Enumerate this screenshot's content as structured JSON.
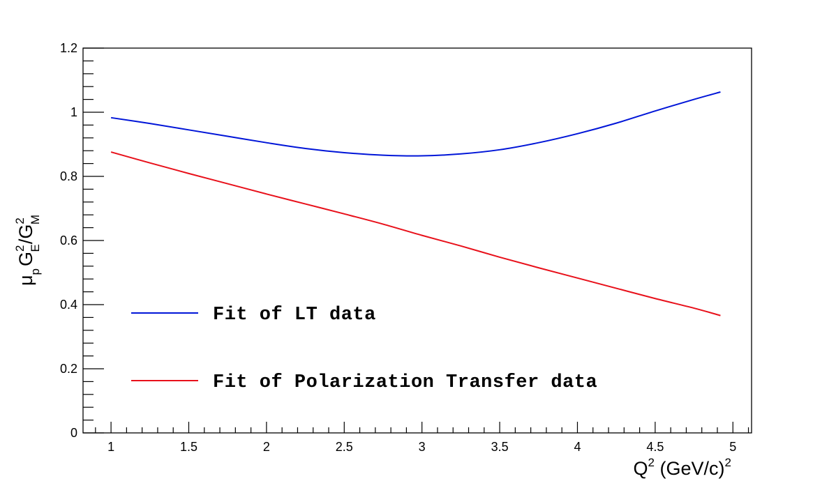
{
  "chart_data": {
    "type": "line",
    "title": "",
    "xlabel": {
      "base": "Q",
      "sup": "2",
      "rest": " (GeV/c)",
      "rest_sup": "2"
    },
    "ylabel": {
      "mu": "μ",
      "mu_sub": "p",
      "ge": "G",
      "ge_sup": "2",
      "ge_sub": "E",
      "slash": "/",
      "gm": "G",
      "gm_sup": "2",
      "gm_sub": "M"
    },
    "xlim": [
      0.82,
      5.12
    ],
    "ylim": [
      0,
      1.2
    ],
    "x_ticks": [
      1,
      1.5,
      2,
      2.5,
      3,
      3.5,
      4,
      4.5,
      5
    ],
    "x_tick_labels": [
      "1",
      "1.5",
      "2",
      "2.5",
      "3",
      "3.5",
      "4",
      "4.5",
      "5"
    ],
    "y_ticks": [
      0,
      0.2,
      0.4,
      0.6,
      0.8,
      1,
      1.2
    ],
    "y_tick_labels": [
      "0",
      "0.2",
      "0.4",
      "0.6",
      "0.8",
      "1",
      "1.2"
    ],
    "grid": false,
    "legend_placement": "lower-left",
    "series": [
      {
        "name": "Fit of LT data",
        "color": "#0015d8",
        "x": [
          1.0,
          1.25,
          1.5,
          1.75,
          2.0,
          2.25,
          2.5,
          2.75,
          3.0,
          3.25,
          3.5,
          3.75,
          4.0,
          4.25,
          4.5,
          4.75,
          4.92
        ],
        "y": [
          0.983,
          0.965,
          0.945,
          0.925,
          0.905,
          0.887,
          0.874,
          0.866,
          0.864,
          0.87,
          0.883,
          0.905,
          0.933,
          0.966,
          1.004,
          1.04,
          1.063
        ]
      },
      {
        "name": "Fit of Polarization Transfer data",
        "color": "#e8101a",
        "x": [
          1.0,
          1.25,
          1.5,
          1.75,
          2.0,
          2.25,
          2.5,
          2.75,
          3.0,
          3.25,
          3.5,
          3.75,
          4.0,
          4.25,
          4.5,
          4.75,
          4.92
        ],
        "y": [
          0.876,
          0.842,
          0.809,
          0.777,
          0.745,
          0.714,
          0.683,
          0.651,
          0.616,
          0.583,
          0.548,
          0.515,
          0.483,
          0.451,
          0.419,
          0.389,
          0.366
        ]
      }
    ]
  }
}
